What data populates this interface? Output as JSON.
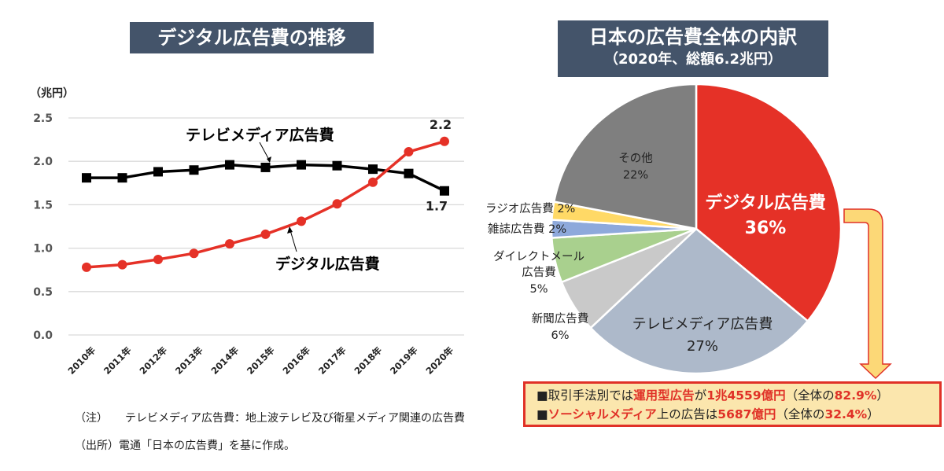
{
  "left_panel": {
    "title": "デジタル広告費の推移",
    "unit_label": "（兆円）",
    "notes": [
      {
        "prefix": "（注）",
        "text": "テレビメディア広告費：地上波テレビ及び衛星メディア関連の広告費"
      },
      {
        "prefix": "（出所）",
        "text": "電通「日本の広告費」を基に作成。"
      }
    ]
  },
  "right_panel": {
    "title": "日本の広告費全体の内訳",
    "subtitle": "（2020年、総額6.2兆円）",
    "callout": {
      "line1": [
        {
          "text": "■取引手法別では",
          "highlight": false
        },
        {
          "text": "運用型広告",
          "highlight": true
        },
        {
          "text": "が",
          "highlight": false
        },
        {
          "text": "1兆4559億円",
          "highlight": true
        },
        {
          "text": "（全体の",
          "highlight": false
        },
        {
          "text": "82.9%",
          "highlight": true
        },
        {
          "text": "）",
          "highlight": false
        }
      ],
      "line2": [
        {
          "text": "■",
          "highlight": false
        },
        {
          "text": "ソーシャルメディア",
          "highlight": true
        },
        {
          "text": "上の広告は",
          "highlight": false
        },
        {
          "text": "5687億円",
          "highlight": true
        },
        {
          "text": "（全体の",
          "highlight": false
        },
        {
          "text": "32.4%",
          "highlight": true
        },
        {
          "text": "）",
          "highlight": false
        }
      ]
    }
  },
  "colors": {
    "title_bg": "#44546a",
    "digital": "#e53127",
    "tv_line": "#000000",
    "grid": "#d9d9d9",
    "callout_border": "#e03127",
    "callout_bg": "#fbe6ad"
  },
  "chart_data": [
    {
      "type": "line",
      "title": "デジタル広告費の推移",
      "xlabel": "",
      "ylabel": "（兆円）",
      "x": [
        "2010年",
        "2011年",
        "2012年",
        "2013年",
        "2014年",
        "2015年",
        "2016年",
        "2017年",
        "2018年",
        "2019年",
        "2020年"
      ],
      "ylim": [
        0,
        2.5
      ],
      "yticks": [
        "0.0",
        "0.5",
        "1.0",
        "1.5",
        "2.0",
        "2.5"
      ],
      "grid": true,
      "series": [
        {
          "name": "テレビメディア広告費",
          "marker": "square",
          "color": "#000000",
          "values": [
            1.81,
            1.81,
            1.88,
            1.9,
            1.96,
            1.93,
            1.96,
            1.95,
            1.91,
            1.86,
            1.66
          ],
          "end_label": "1.7"
        },
        {
          "name": "デジタル広告費",
          "marker": "circle",
          "color": "#e53127",
          "values": [
            0.78,
            0.81,
            0.87,
            0.94,
            1.05,
            1.16,
            1.31,
            1.51,
            1.76,
            2.11,
            2.23
          ],
          "end_label": "2.2"
        }
      ]
    },
    {
      "type": "pie",
      "title": "日本の広告費全体の内訳（2020年、総額6.2兆円）",
      "slices": [
        {
          "label": "デジタル広告費",
          "value": 36,
          "pct": "36%",
          "color": "#e53127"
        },
        {
          "label": "テレビメディア広告費",
          "value": 27,
          "pct": "27%",
          "color": "#adb9ca"
        },
        {
          "label": "新聞広告費",
          "value": 6,
          "pct": "6%",
          "color": "#c9c9c9"
        },
        {
          "label": "ダイレクトメール広告費",
          "value": 5,
          "pct": "5%",
          "color": "#a9d08e"
        },
        {
          "label": "雑誌広告費",
          "value": 2,
          "pct": "2%",
          "color": "#8ea9db"
        },
        {
          "label": "ラジオ広告費",
          "value": 2,
          "pct": "2%",
          "color": "#ffd966"
        },
        {
          "label": "その他",
          "value": 22,
          "pct": "22%",
          "color": "#7f7f7f"
        }
      ]
    }
  ]
}
